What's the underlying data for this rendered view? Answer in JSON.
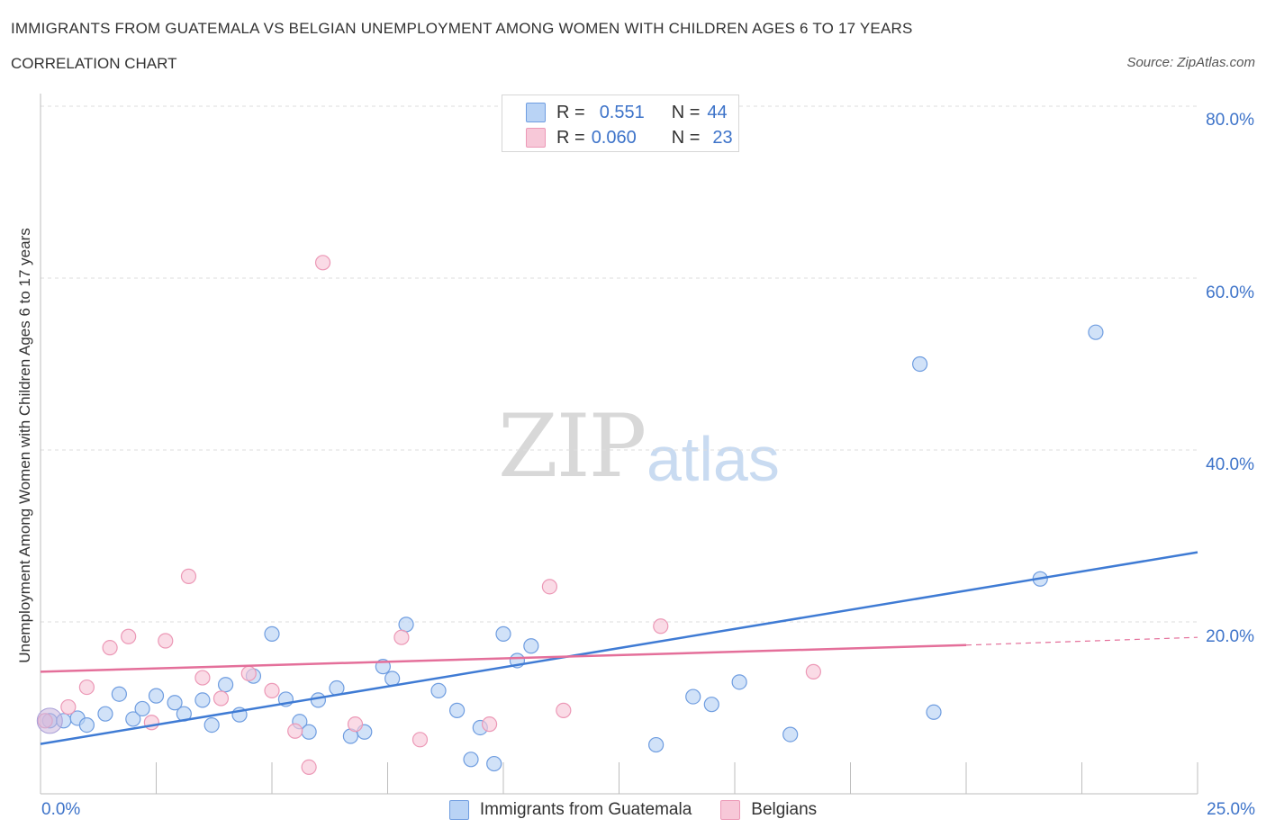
{
  "header": {
    "title": "IMMIGRANTS FROM GUATEMALA VS BELGIAN UNEMPLOYMENT AMONG WOMEN WITH CHILDREN AGES 6 TO 17 YEARS",
    "subtitle": "CORRELATION CHART",
    "source": "Source: ZipAtlas.com"
  },
  "watermark": {
    "zip": "ZIP",
    "atlas": "atlas"
  },
  "legend": {
    "rows": [
      {
        "r_label": "R =",
        "r_value": "0.551",
        "n_label": "N =",
        "n_value": "44"
      },
      {
        "r_label": "R =",
        "r_value": "0.060",
        "n_label": "N =",
        "n_value": "23"
      }
    ]
  },
  "colors": {
    "blue": "#3f7bd4",
    "blue_fill": "#b9d3f5",
    "pink": "#e46f9a",
    "pink_fill": "#f7c8d8",
    "axis_text": "#3d73c9",
    "grid": "#dedede"
  },
  "chart_data": {
    "type": "scatter",
    "title": "IMMIGRANTS FROM GUATEMALA VS BELGIAN UNEMPLOYMENT AMONG WOMEN WITH CHILDREN AGES 6 TO 17 YEARS",
    "xlabel": "",
    "ylabel": "Unemployment Among Women with Children Ages 6 to 17 years",
    "xlim": [
      0,
      25
    ],
    "ylim": [
      0,
      80
    ],
    "x_tick_labels": [
      "0.0%",
      "25.0%"
    ],
    "y_tick_labels": [
      "20.0%",
      "40.0%",
      "60.0%",
      "80.0%"
    ],
    "y_ticks": [
      20,
      40,
      60,
      80
    ],
    "grid": "horizontal dashed",
    "legend_position": "top-center",
    "series": [
      {
        "name": "Immigrants from Guatemala",
        "color": "#3f7bd4",
        "points": [
          [
            0.2,
            8.5
          ],
          [
            0.5,
            8.5
          ],
          [
            0.8,
            8.8
          ],
          [
            1.0,
            8.0
          ],
          [
            1.4,
            9.3
          ],
          [
            1.7,
            11.6
          ],
          [
            2.0,
            8.7
          ],
          [
            2.2,
            9.9
          ],
          [
            2.5,
            11.4
          ],
          [
            2.9,
            10.6
          ],
          [
            3.1,
            9.3
          ],
          [
            3.5,
            10.9
          ],
          [
            3.7,
            8.0
          ],
          [
            4.0,
            12.7
          ],
          [
            4.3,
            9.2
          ],
          [
            4.6,
            13.7
          ],
          [
            5.0,
            18.6
          ],
          [
            5.3,
            11.0
          ],
          [
            5.6,
            8.4
          ],
          [
            5.8,
            7.2
          ],
          [
            6.0,
            10.9
          ],
          [
            6.4,
            12.3
          ],
          [
            6.7,
            6.7
          ],
          [
            7.0,
            7.2
          ],
          [
            7.4,
            14.8
          ],
          [
            7.6,
            13.4
          ],
          [
            7.9,
            19.7
          ],
          [
            8.6,
            12.0
          ],
          [
            9.0,
            9.7
          ],
          [
            9.3,
            4.0
          ],
          [
            9.5,
            7.7
          ],
          [
            9.8,
            3.5
          ],
          [
            10.0,
            18.6
          ],
          [
            10.3,
            15.5
          ],
          [
            10.6,
            17.2
          ],
          [
            13.3,
            5.7
          ],
          [
            14.1,
            11.3
          ],
          [
            14.5,
            10.4
          ],
          [
            15.1,
            13.0
          ],
          [
            16.2,
            6.9
          ],
          [
            19.3,
            9.5
          ],
          [
            21.6,
            25.0
          ],
          [
            19.0,
            50.0
          ],
          [
            22.8,
            53.7
          ]
        ]
      },
      {
        "name": "Belgians",
        "color": "#e46f9a",
        "points": [
          [
            0.1,
            8.5
          ],
          [
            0.6,
            10.1
          ],
          [
            1.0,
            12.4
          ],
          [
            1.5,
            17.0
          ],
          [
            1.9,
            18.3
          ],
          [
            2.4,
            8.3
          ],
          [
            2.7,
            17.8
          ],
          [
            3.2,
            25.3
          ],
          [
            3.5,
            13.5
          ],
          [
            3.9,
            11.1
          ],
          [
            4.5,
            14.0
          ],
          [
            5.0,
            12.0
          ],
          [
            5.5,
            7.3
          ],
          [
            5.8,
            3.1
          ],
          [
            6.1,
            61.8
          ],
          [
            6.8,
            8.1
          ],
          [
            7.8,
            18.2
          ],
          [
            8.2,
            6.3
          ],
          [
            9.7,
            8.1
          ],
          [
            11.0,
            24.1
          ],
          [
            11.3,
            9.7
          ],
          [
            13.4,
            19.5
          ],
          [
            16.7,
            14.2
          ]
        ]
      }
    ],
    "trendlines": [
      {
        "series": "Immigrants from Guatemala",
        "x": [
          0,
          25
        ],
        "y": [
          5.8,
          28.1
        ],
        "style": "solid"
      },
      {
        "series": "Belgians",
        "x": [
          0,
          20
        ],
        "y": [
          14.2,
          17.3
        ],
        "style": "solid"
      },
      {
        "series": "Belgians",
        "x": [
          20,
          25
        ],
        "y": [
          17.3,
          18.2
        ],
        "style": "dashed"
      }
    ]
  },
  "bottom_legend": [
    {
      "label": "Immigrants from Guatemala"
    },
    {
      "label": "Belgians"
    }
  ]
}
